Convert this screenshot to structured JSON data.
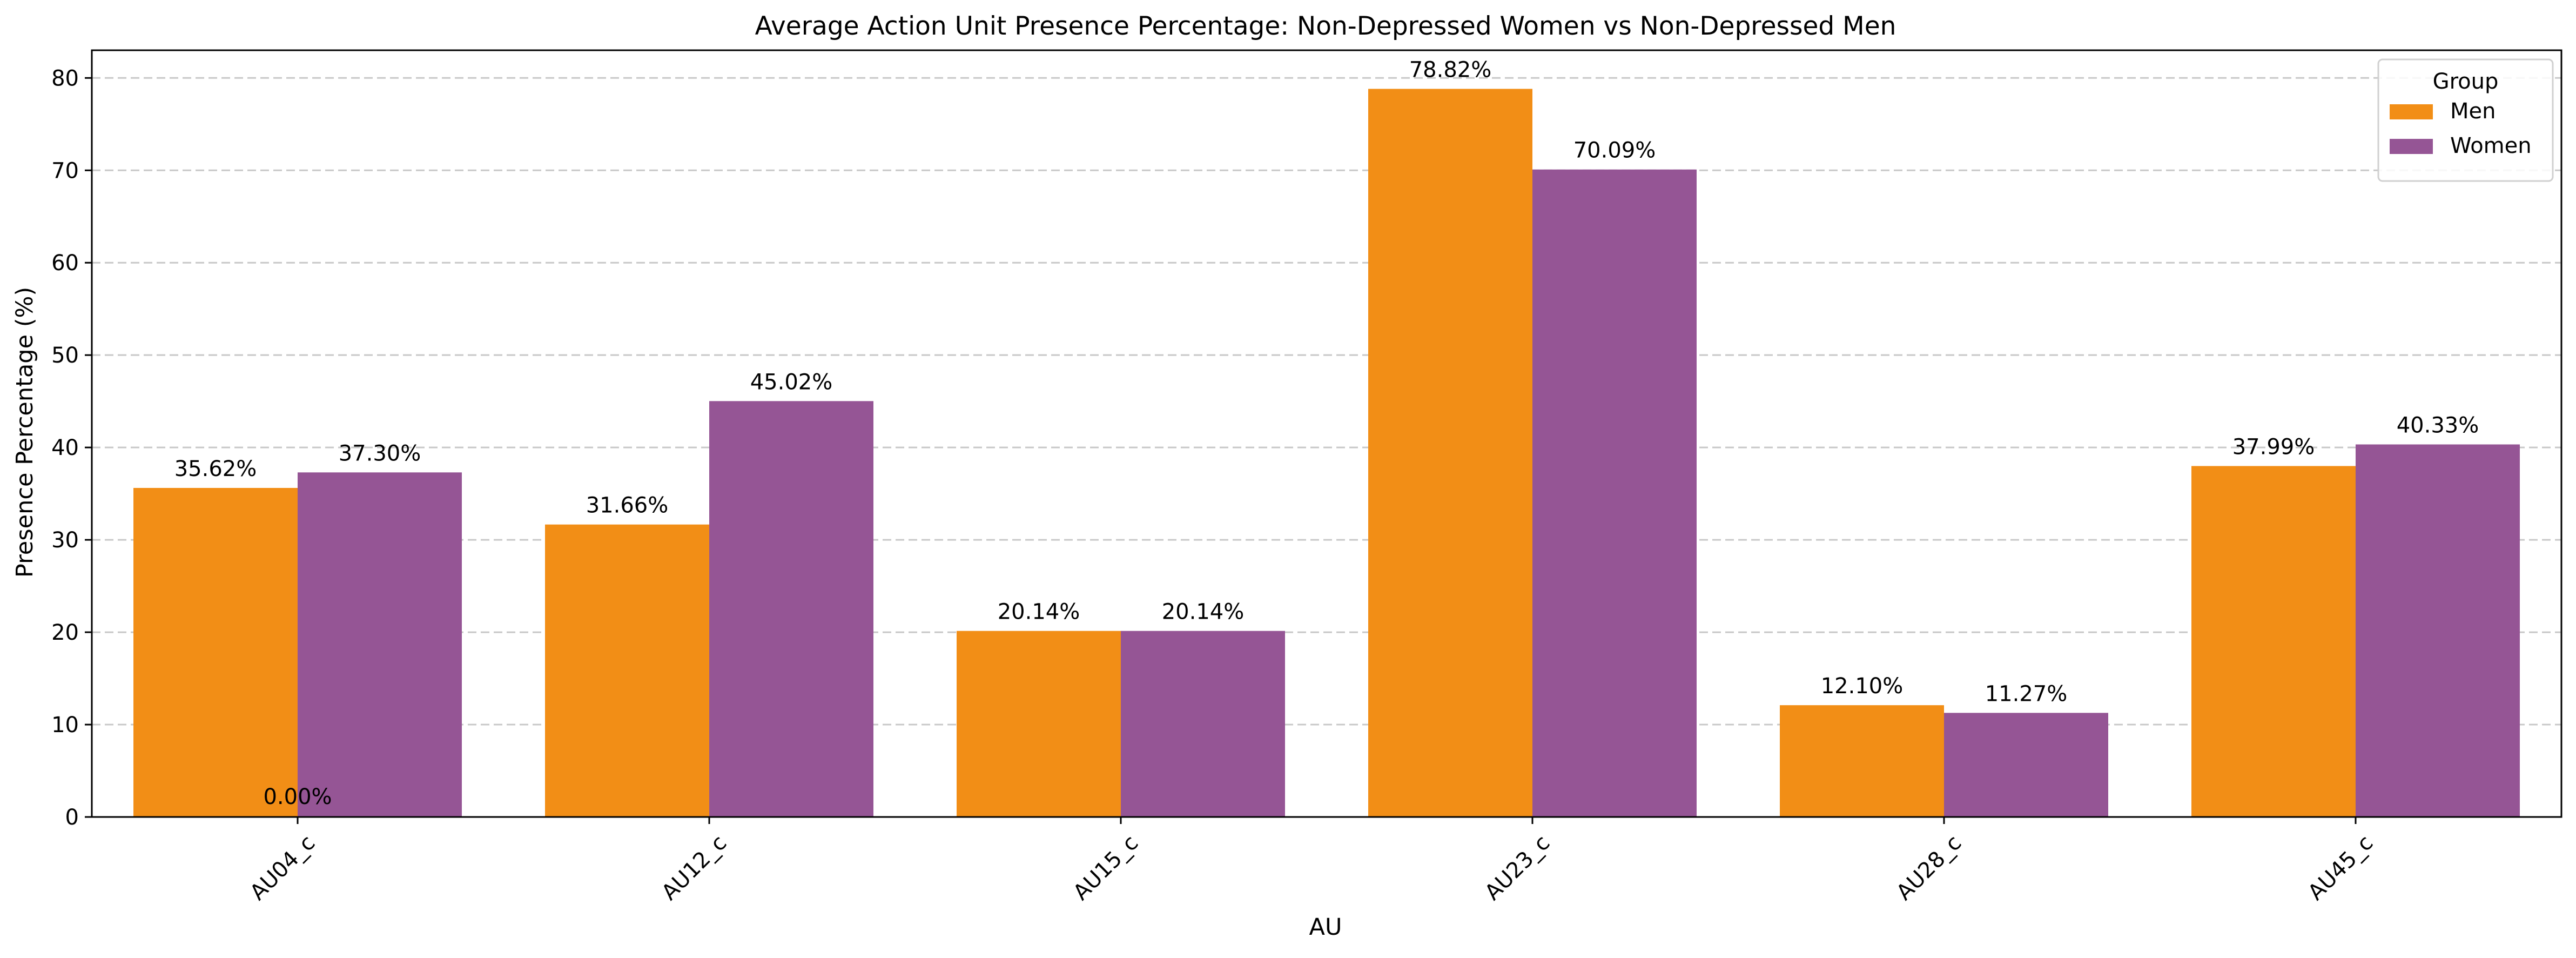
{
  "chart_data": {
    "type": "bar",
    "title": "Average Action Unit Presence Percentage: Non-Depressed Women vs Non-Depressed Men",
    "xlabel": "AU",
    "ylabel": "Presence Percentage (%)",
    "categories": [
      "AU04_c",
      "AU12_c",
      "AU15_c",
      "AU23_c",
      "AU28_c",
      "AU45_c"
    ],
    "series": [
      {
        "name": "Men",
        "color": "#f28e16",
        "values": [
          35.62,
          31.66,
          20.14,
          78.82,
          12.1,
          37.99
        ],
        "labels": [
          "35.62%",
          "31.66%",
          "20.14%",
          "78.82%",
          "12.10%",
          "37.99%"
        ]
      },
      {
        "name": "Women",
        "color": "#955595",
        "values": [
          37.3,
          45.02,
          20.14,
          70.09,
          11.27,
          40.33
        ],
        "labels": [
          "37.30%",
          "45.02%",
          "20.14%",
          "70.09%",
          "11.27%",
          "40.33%"
        ]
      }
    ],
    "extra_annotations": [
      {
        "text": "0.00%",
        "category": "AU04_c",
        "value": 0
      }
    ],
    "ylim": [
      0,
      83
    ],
    "yticks": [
      0,
      10,
      20,
      30,
      40,
      50,
      60,
      70,
      80
    ],
    "grid": "y-dashed",
    "legend": {
      "title": "Group",
      "placement": "top-right"
    },
    "tick_rotation": -45
  }
}
